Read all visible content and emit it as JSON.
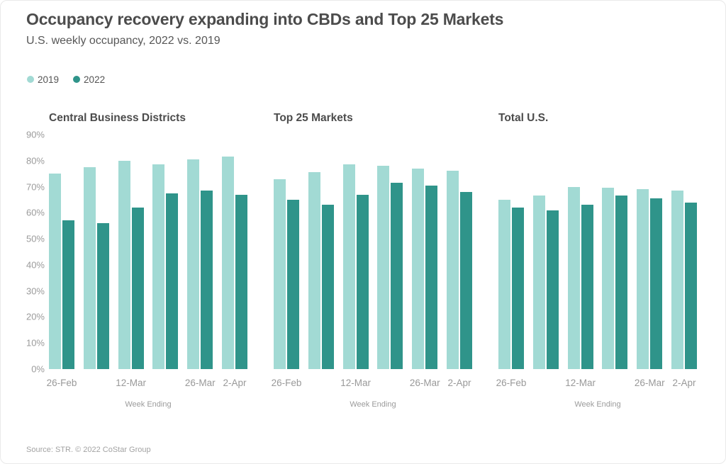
{
  "header": {
    "title": "Occupancy recovery expanding into CBDs and Top 25 Markets",
    "subtitle": "U.S. weekly occupancy, 2022 vs. 2019"
  },
  "legend": {
    "items": [
      {
        "label": "2019",
        "color": "#a2dad4"
      },
      {
        "label": "2022",
        "color": "#2f948a"
      }
    ]
  },
  "colors": {
    "series_2019": "#a2dad4",
    "series_2022": "#2f948a"
  },
  "footer": {
    "source": "Source: STR. © 2022 CoStar Group"
  },
  "chart_data": [
    {
      "type": "bar",
      "title": "Central Business Districts",
      "categories": [
        "26-Feb",
        "",
        "12-Mar",
        "",
        "26-Mar",
        "2-Apr"
      ],
      "series": [
        {
          "name": "2019",
          "color": "#a2dad4",
          "values": [
            75,
            77.5,
            80,
            78.5,
            80.5,
            81.5
          ]
        },
        {
          "name": "2022",
          "color": "#2f948a",
          "values": [
            57,
            56,
            62,
            67.5,
            68.5,
            67
          ]
        }
      ],
      "xlabel": "Week Ending",
      "ylabel": "",
      "ylim": [
        0,
        90
      ],
      "yticks": [
        "90%",
        "80%",
        "70%",
        "60%",
        "50%",
        "40%",
        "30%",
        "20%",
        "10%",
        "0%"
      ],
      "y_axis_shown": true,
      "grid": false,
      "legend_position": "top-left"
    },
    {
      "type": "bar",
      "title": "Top 25 Markets",
      "categories": [
        "26-Feb",
        "",
        "12-Mar",
        "",
        "26-Mar",
        "2-Apr"
      ],
      "series": [
        {
          "name": "2019",
          "color": "#a2dad4",
          "values": [
            73,
            75.5,
            78.5,
            78,
            77,
            76
          ]
        },
        {
          "name": "2022",
          "color": "#2f948a",
          "values": [
            65,
            63,
            67,
            71.5,
            70.5,
            68
          ]
        }
      ],
      "xlabel": "Week Ending",
      "ylabel": "",
      "ylim": [
        0,
        90
      ],
      "yticks": [
        "90%",
        "80%",
        "70%",
        "60%",
        "50%",
        "40%",
        "30%",
        "20%",
        "10%",
        "0%"
      ],
      "y_axis_shown": false,
      "grid": false
    },
    {
      "type": "bar",
      "title": "Total U.S.",
      "categories": [
        "26-Feb",
        "",
        "12-Mar",
        "",
        "26-Mar",
        "2-Apr"
      ],
      "series": [
        {
          "name": "2019",
          "color": "#a2dad4",
          "values": [
            65,
            66.5,
            70,
            69.5,
            69,
            68.5
          ]
        },
        {
          "name": "2022",
          "color": "#2f948a",
          "values": [
            62,
            61,
            63,
            66.5,
            65.5,
            64
          ]
        }
      ],
      "xlabel": "Week Ending",
      "ylabel": "",
      "ylim": [
        0,
        90
      ],
      "yticks": [
        "90%",
        "80%",
        "70%",
        "60%",
        "50%",
        "40%",
        "30%",
        "20%",
        "10%",
        "0%"
      ],
      "y_axis_shown": false,
      "grid": false
    }
  ]
}
